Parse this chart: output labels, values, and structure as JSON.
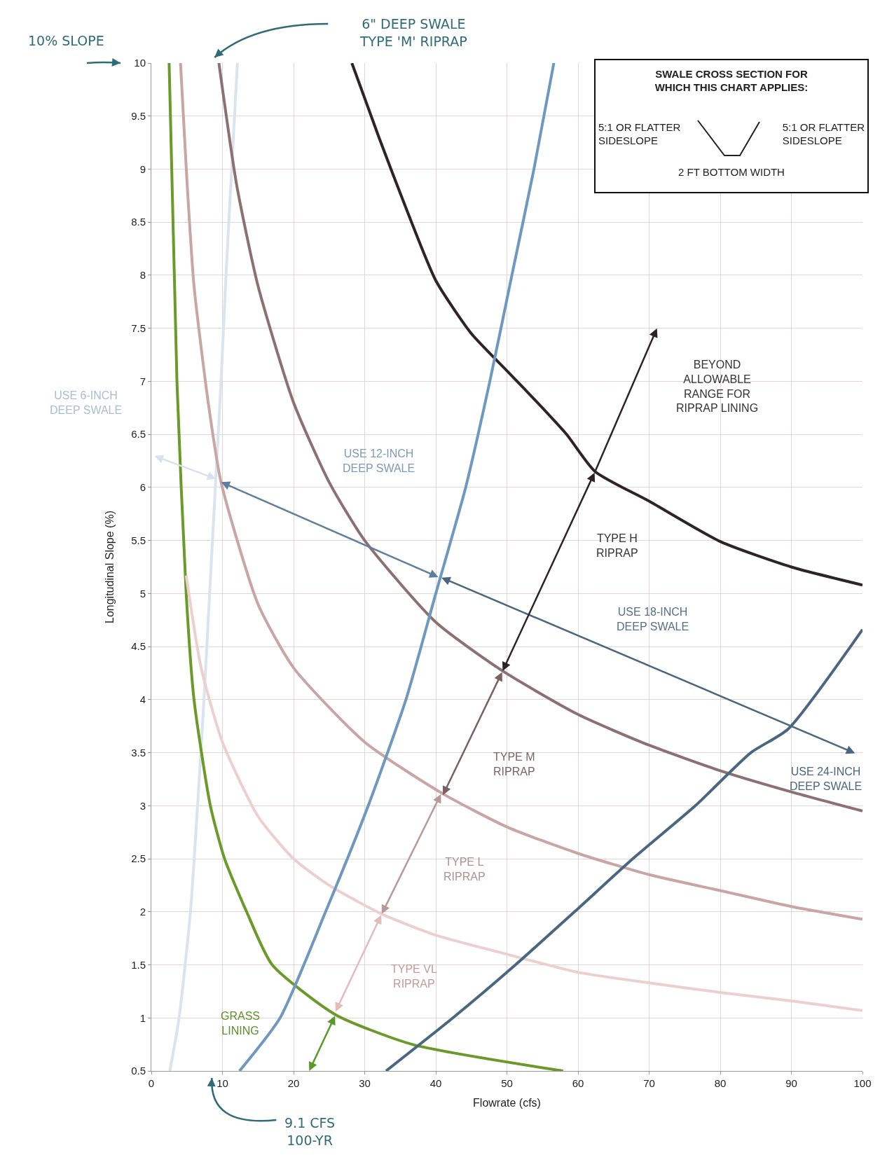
{
  "chart_data": {
    "type": "line",
    "xlabel": "Flowrate (cfs)",
    "ylabel": "Longitudinal Slope (%)",
    "xlim": [
      0,
      100
    ],
    "xticks": [
      0,
      10,
      20,
      30,
      40,
      50,
      60,
      70,
      80,
      90,
      100
    ],
    "ylim": [
      0.5,
      10
    ],
    "yticks": [
      0.5,
      1,
      1.5,
      2,
      2.5,
      3,
      3.5,
      4,
      4.5,
      5,
      5.5,
      6,
      6.5,
      7,
      7.5,
      8,
      8.5,
      9,
      9.5,
      10
    ],
    "grid": true,
    "marker": "none",
    "line_style": "solid",
    "series": [
      {
        "color": "#dbe4ee",
        "x": [
          2.6,
          3.9,
          5.5,
          6.5,
          7.4,
          8.2,
          9.0,
          9.8,
          10.5,
          11.3,
          12.1
        ],
        "values": [
          0.5,
          1,
          2,
          3,
          4,
          5,
          6,
          7,
          8,
          9,
          10
        ]
      },
      {
        "color": "#6a9a2a",
        "x": [
          2.5,
          3.6,
          4.9,
          6.0,
          8.3,
          10.3,
          13.4,
          17,
          25.9,
          36.7,
          57.9
        ],
        "values": [
          10,
          7,
          5,
          4,
          3,
          2.5,
          2,
          1.5,
          1.03,
          0.75,
          0.5
        ]
      },
      {
        "color": "#ecd0d0",
        "x": [
          4.9,
          7,
          10,
          15,
          20,
          25,
          32.4,
          40,
          50,
          60,
          70,
          80,
          90,
          100
        ],
        "values": [
          5.17,
          4.3,
          3.6,
          2.9,
          2.5,
          2.25,
          1.98,
          1.78,
          1.6,
          1.43,
          1.33,
          1.24,
          1.16,
          1.07
        ]
      },
      {
        "color": "#c9a5a5",
        "x": [
          4.1,
          5,
          6,
          8,
          9.8,
          15,
          20,
          30,
          40.8,
          50,
          60,
          70,
          80,
          90,
          100
        ],
        "values": [
          10,
          8.9,
          7.9,
          6.8,
          6.05,
          4.9,
          4.3,
          3.6,
          3.12,
          2.8,
          2.55,
          2.35,
          2.2,
          2.05,
          1.93
        ]
      },
      {
        "color": "#8c7072",
        "x": [
          9.5,
          12,
          15,
          20,
          25,
          30,
          40,
          49.4,
          60,
          70,
          80,
          90,
          100
        ],
        "values": [
          10,
          8.85,
          7.9,
          6.8,
          6.05,
          5.5,
          4.73,
          4.27,
          3.86,
          3.57,
          3.33,
          3.13,
          2.95
        ]
      },
      {
        "color": "#2e2426",
        "x": [
          28.2,
          32,
          36,
          40,
          45,
          50,
          55,
          58.4,
          62.4,
          70,
          80,
          90,
          100
        ],
        "values": [
          10,
          9.3,
          8.6,
          7.95,
          7.45,
          7.1,
          6.75,
          6.5,
          6.15,
          5.87,
          5.49,
          5.25,
          5.08
        ]
      },
      {
        "color": "#6f98c0",
        "x": [
          12.4,
          18.1,
          24.5,
          30.5,
          35.8,
          40,
          44.2,
          47.6,
          50.7,
          53.8,
          56.6
        ],
        "values": [
          0.5,
          1,
          2,
          3,
          4,
          5,
          6,
          7,
          8,
          9,
          10
        ]
      },
      {
        "color": "#4a6680",
        "x": [
          33,
          42.4,
          51.2,
          59.5,
          67.7,
          76.5,
          84.3,
          89.5,
          100
        ],
        "values": [
          0.5,
          1,
          1.5,
          2,
          2.5,
          3,
          3.5,
          3.72,
          4.66
        ]
      }
    ],
    "annotations": [
      "USE 6-INCH\nDEEP SWALE",
      "USE 12-INCH\nDEEP SWALE",
      "BEYOND\nALLOWABLE\nRANGE FOR\nRIPRAP LINING",
      "TYPE H\nRIPRAP",
      "USE 18-INCH\nDEEP SWALE",
      "TYPE M\nRIPRAP",
      "USE 24-INCH\nDEEP SWALE",
      "TYPE L\nRIPRAP",
      "TYPE VL\nRIPRAP",
      "GRASS\nLINING",
      "10% SLOPE",
      "6\" DEEP SWALE\nTYPE 'M' RIPRAP",
      "9.1 CFS\n100-YR",
      "SWALE CROSS SECTION FOR\nWHICH THIS CHART APPLIES:",
      "5:1 OR FLATTER\nSIDESLOPE",
      "5:1 OR FLATTER\nSIDESLOPE",
      "2 FT BOTTOM WIDTH"
    ]
  }
}
